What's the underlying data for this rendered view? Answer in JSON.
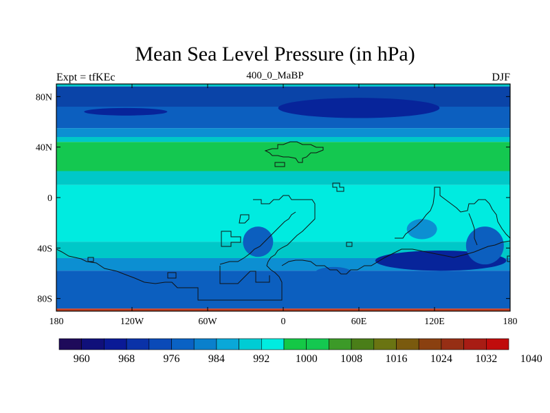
{
  "title": "Mean Sea Level Pressure (in hPa)",
  "left_subtitle": "Expt = tfKEc",
  "center_subtitle": "400_0_MaBP",
  "right_subtitle": "DJF",
  "map": {
    "lat_ticks": [
      {
        "value": 80,
        "label": "80N"
      },
      {
        "value": 40,
        "label": "40N"
      },
      {
        "value": 0,
        "label": "0"
      },
      {
        "value": -40,
        "label": "40S"
      },
      {
        "value": -80,
        "label": "80S"
      }
    ],
    "lon_ticks": [
      {
        "value": -180,
        "label": "180"
      },
      {
        "value": -120,
        "label": "120W"
      },
      {
        "value": -60,
        "label": "60W"
      },
      {
        "value": 0,
        "label": "0"
      },
      {
        "value": 60,
        "label": "60E"
      },
      {
        "value": 120,
        "label": "120E"
      },
      {
        "value": 180,
        "label": "180"
      }
    ],
    "bands": [
      {
        "lat_top": 90,
        "lat_bottom": 88,
        "color": "#00c8c8"
      },
      {
        "lat_top": 88,
        "lat_bottom": 72,
        "color": "#0a44a8"
      },
      {
        "lat_top": 72,
        "lat_bottom": 55,
        "color": "#0c5fbf"
      },
      {
        "lat_top": 55,
        "lat_bottom": 48,
        "color": "#0c8fd2"
      },
      {
        "lat_top": 48,
        "lat_bottom": 44,
        "color": "#00c8c8"
      },
      {
        "lat_top": 44,
        "lat_bottom": 21,
        "color": "#14c850"
      },
      {
        "lat_top": 21,
        "lat_bottom": 10,
        "color": "#00c8c8"
      },
      {
        "lat_top": 10,
        "lat_bottom": -35,
        "color": "#00ebe0"
      },
      {
        "lat_top": -35,
        "lat_bottom": -48,
        "color": "#00c8c8"
      },
      {
        "lat_top": -48,
        "lat_bottom": -58,
        "color": "#0c8fd2"
      },
      {
        "lat_top": -58,
        "lat_bottom": -88,
        "color": "#0c5fbf"
      },
      {
        "lat_top": -88,
        "lat_bottom": -90,
        "color": "#c84020"
      }
    ],
    "lows": [
      {
        "lon": 60,
        "lat": 71,
        "rlon": 64,
        "rlat": 8,
        "color": "#07249a"
      },
      {
        "lon": -125,
        "lat": 68,
        "rlon": 33,
        "rlat": 3,
        "color": "#07249a"
      },
      {
        "lon": 125,
        "lat": -50,
        "rlon": 52,
        "rlat": 8,
        "color": "#07249a"
      },
      {
        "lon": -20,
        "lat": -35,
        "rlon": 12,
        "rlat": 12,
        "color": "#0c5fbf"
      },
      {
        "lon": 110,
        "lat": -25,
        "rlon": 12,
        "rlat": 8,
        "color": "#0c8fd2"
      },
      {
        "lon": 160,
        "lat": -38,
        "rlon": 15,
        "rlat": 15,
        "color": "#0c5fbf"
      },
      {
        "lon": 40,
        "lat": -60,
        "rlon": 15,
        "rlat": 5,
        "color": "#0c5fbf"
      }
    ],
    "colorbar": {
      "colors": [
        "#1e0a5a",
        "#10107a",
        "#0a1a96",
        "#0a32a8",
        "#0a4ab8",
        "#0a62c4",
        "#0a80cc",
        "#0aa8d8",
        "#00ccd4",
        "#00ece0",
        "#14c846",
        "#14c850",
        "#3c9a28",
        "#4a7e18",
        "#6a7412",
        "#7a5a0e",
        "#8a4010",
        "#962e14",
        "#a81c14",
        "#c00c0c"
      ],
      "labels": [
        "960",
        "968",
        "976",
        "984",
        "992",
        "1000",
        "1008",
        "1016",
        "1024",
        "1032",
        "1040"
      ]
    }
  }
}
